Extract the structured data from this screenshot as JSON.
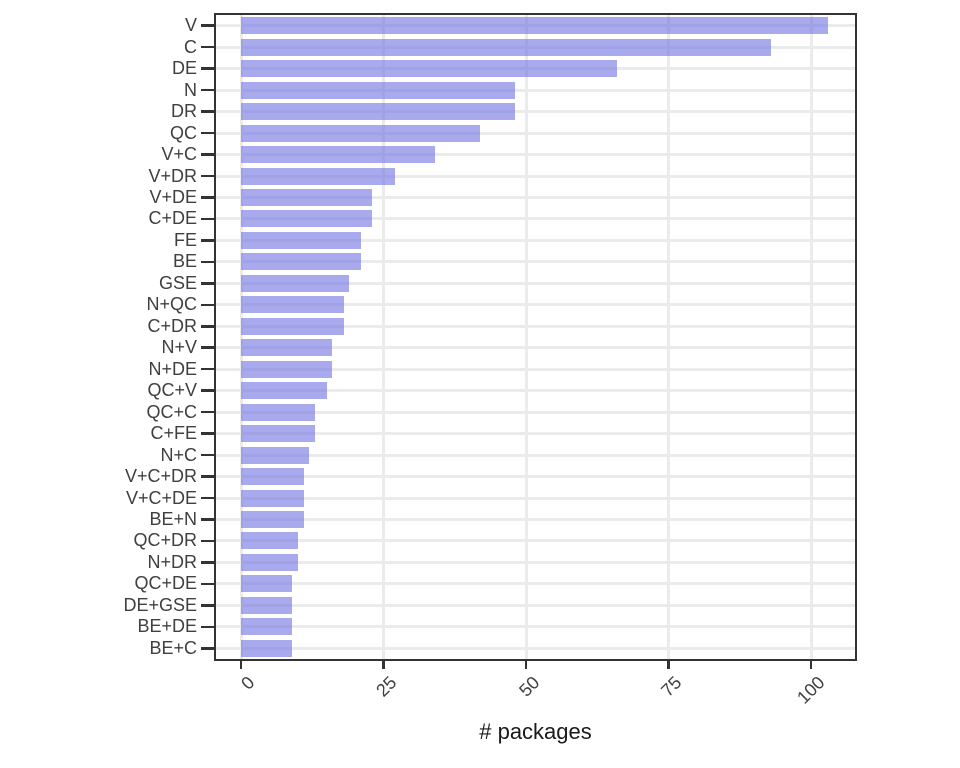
{
  "figure": {
    "background": "#ffffff"
  },
  "chart_data": {
    "type": "bar",
    "orientation": "horizontal",
    "title": "",
    "xlabel": "# packages",
    "ylabel": "",
    "categories": [
      "V",
      "C",
      "DE",
      "N",
      "DR",
      "QC",
      "V+C",
      "V+DR",
      "V+DE",
      "C+DE",
      "FE",
      "BE",
      "GSE",
      "N+QC",
      "C+DR",
      "N+V",
      "N+DE",
      "QC+V",
      "QC+C",
      "C+FE",
      "N+C",
      "V+C+DR",
      "V+C+DE",
      "BE+N",
      "QC+DR",
      "N+DR",
      "QC+DE",
      "DE+GSE",
      "BE+DE",
      "BE+C"
    ],
    "values": [
      103,
      93,
      66,
      48,
      48,
      42,
      34,
      27,
      23,
      23,
      21,
      21,
      19,
      18,
      18,
      16,
      16,
      15,
      13,
      13,
      12,
      11,
      11,
      11,
      10,
      10,
      9,
      9,
      9,
      9
    ],
    "x_ticks": [
      0,
      25,
      50,
      75,
      100
    ],
    "xlim": [
      0,
      108
    ],
    "grid": true,
    "legend": false,
    "colors": {
      "bar_fill": "rgba(106,106,226,0.58)",
      "bar_fill_on_white": "#a8a8f0",
      "gridline": "#ebebeb",
      "panel_border": "#333333",
      "tick": "#333333",
      "axis_text": "#404040",
      "axis_title": "#1a1a1a"
    }
  }
}
